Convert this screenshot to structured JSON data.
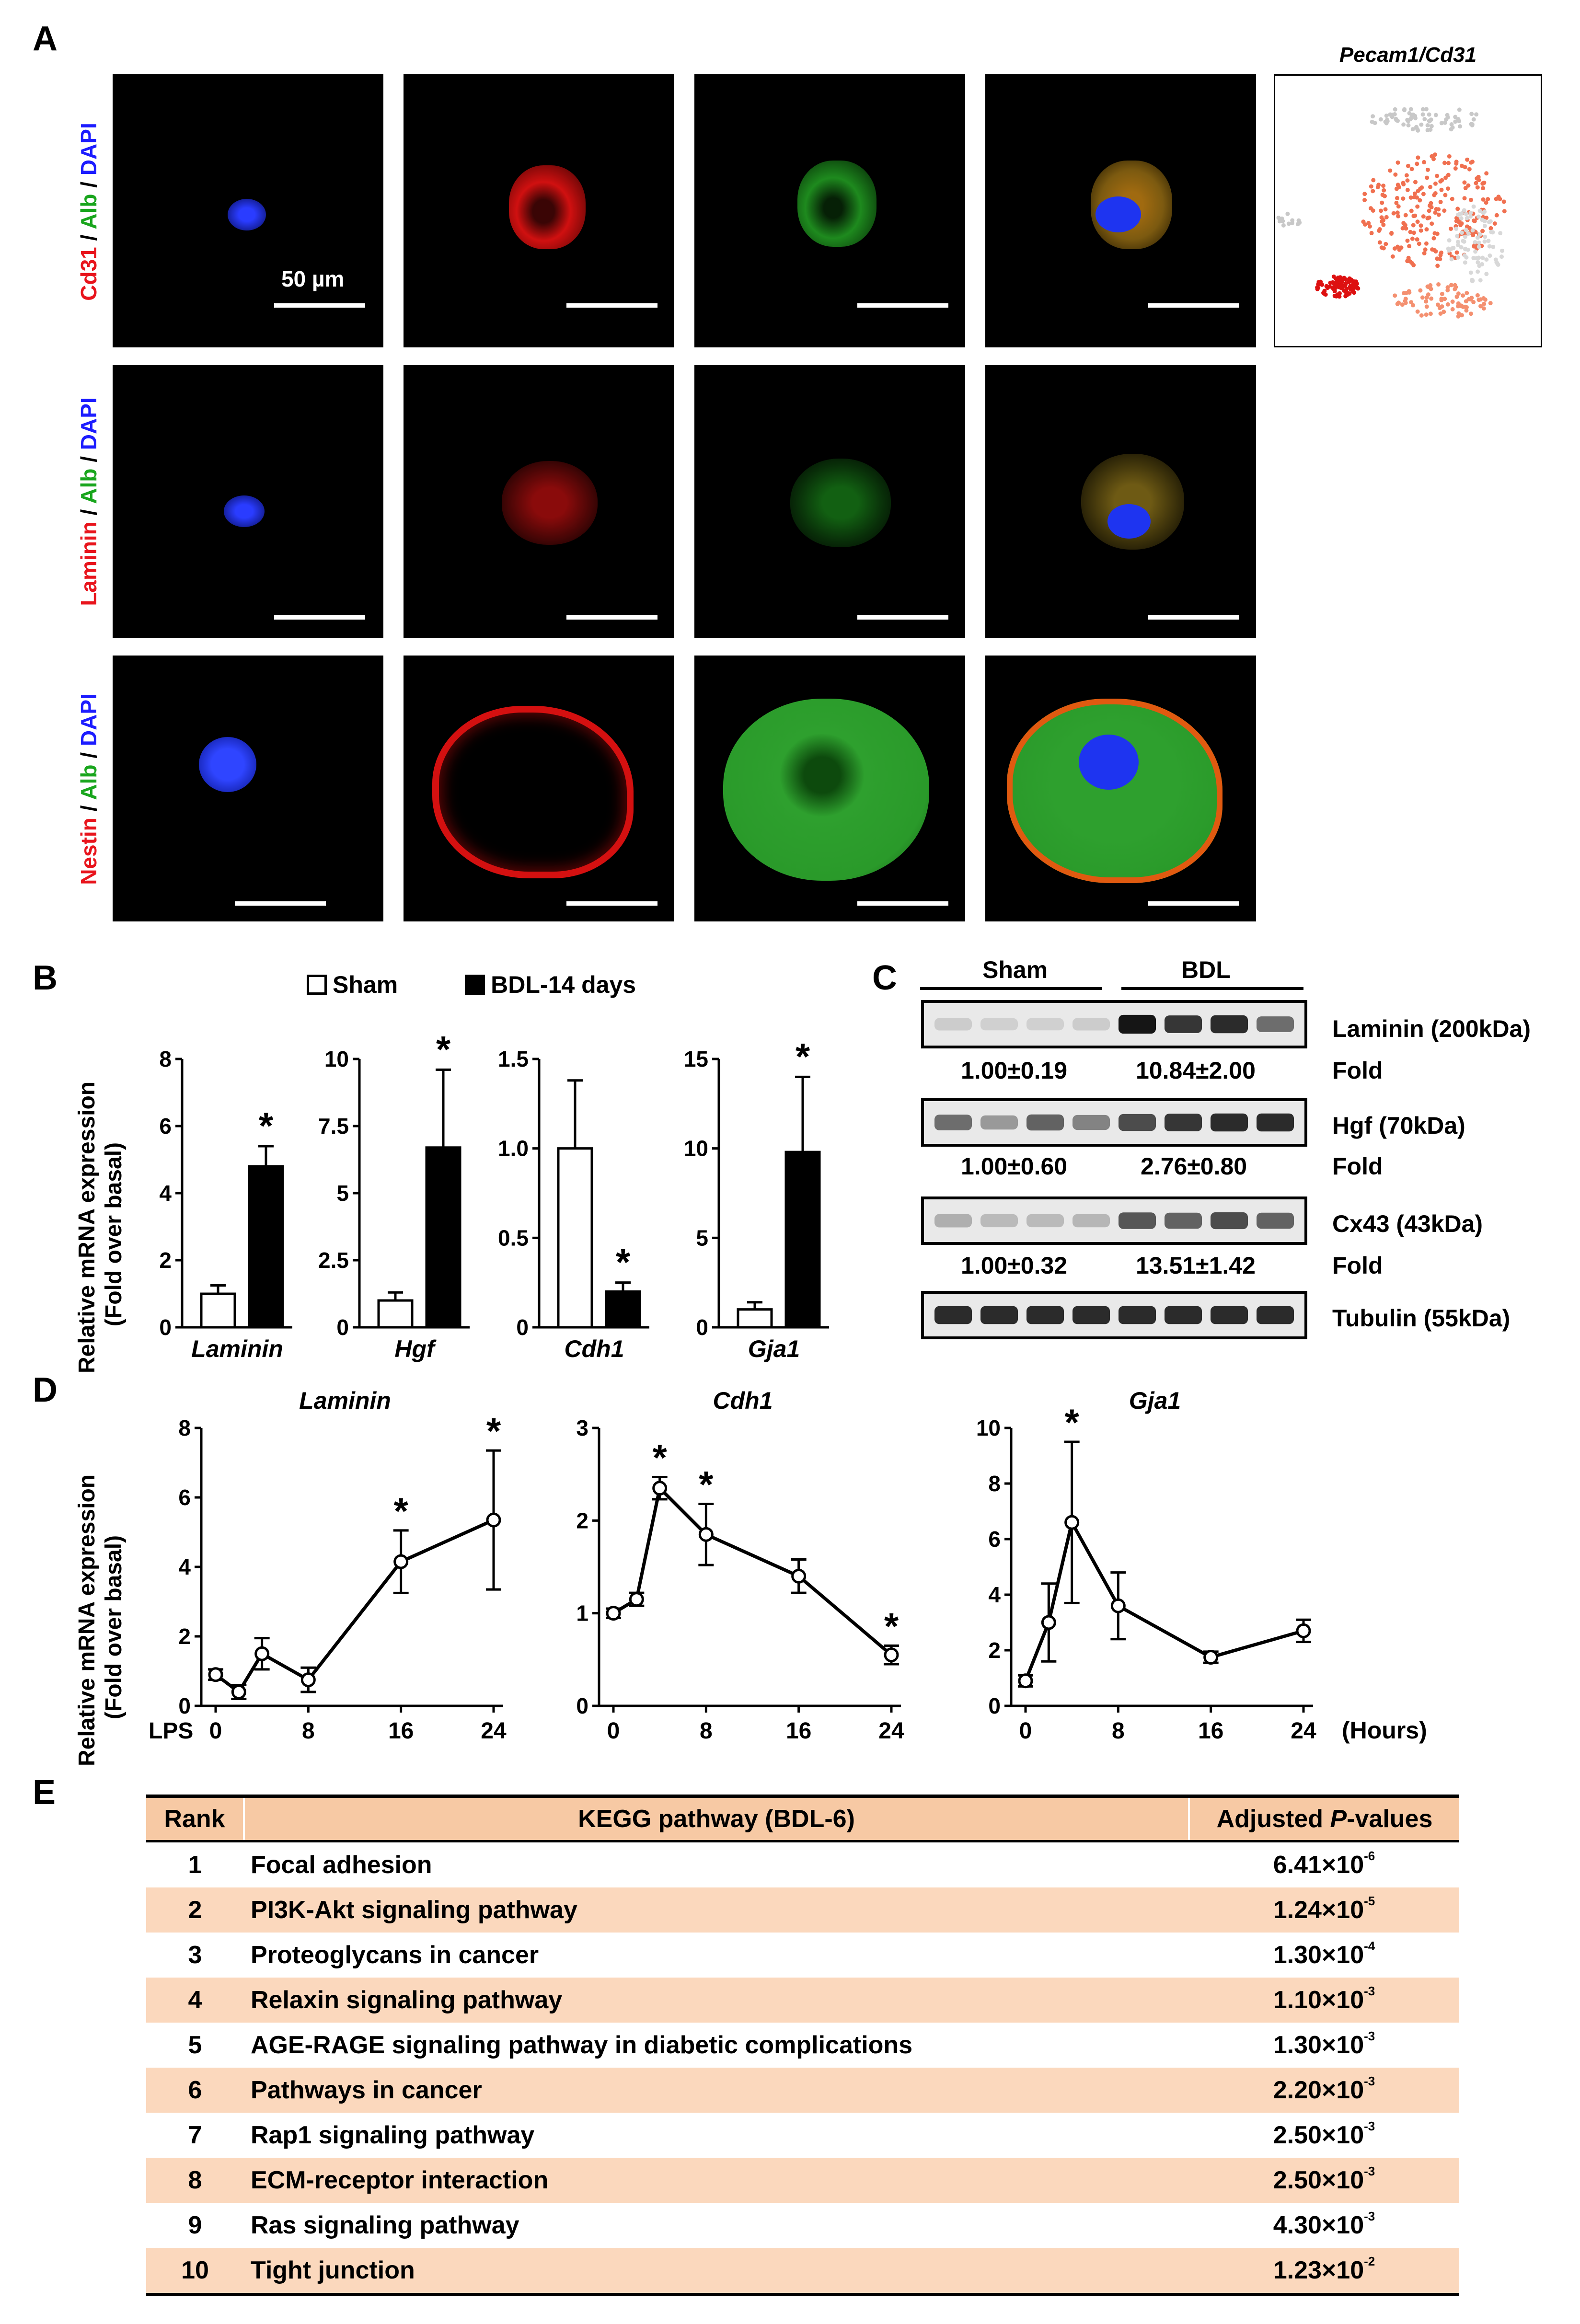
{
  "panel_labels": {
    "a": "A",
    "b": "B",
    "c": "C",
    "d": "D",
    "e": "E"
  },
  "panel_a": {
    "row_labels": [
      {
        "marker": "Cd31",
        "mid": " / ",
        "alb": "Alb",
        "sep": " / ",
        "dapi": "DAPI"
      },
      {
        "marker": "Laminin",
        "mid": " / ",
        "alb": "Alb",
        "sep": " / ",
        "dapi": "DAPI"
      },
      {
        "marker": "Nestin",
        "mid": " / ",
        "alb": "Alb",
        "sep": " / ",
        "dapi": "DAPI"
      }
    ],
    "scale_bar_label": "50 µm",
    "tsne_title": "Pecam1/Cd31",
    "colors": {
      "dapi": "#1a2cff",
      "red": "#e01414",
      "green": "#24b324",
      "text_red": "#e8141c",
      "text_green": "#18a51c",
      "text_blue": "#1c1cff"
    }
  },
  "panel_b": {
    "legend": {
      "sham": "Sham",
      "bdl": "BDL-14 days"
    },
    "ylabel_line1": "Relative mRNA expression",
    "ylabel_line2": "(Fold over basal)",
    "chart_data": [
      {
        "type": "bar",
        "gene": "Laminin",
        "categories": [
          "Sham",
          "BDL-14 days"
        ],
        "values": [
          1.0,
          4.8
        ],
        "errors": [
          0.25,
          0.6
        ],
        "ylim": [
          0,
          8
        ],
        "yticks": [
          "0",
          "2",
          "4",
          "6",
          "8"
        ],
        "significant": [
          false,
          true
        ]
      },
      {
        "type": "bar",
        "gene": "Hgf",
        "categories": [
          "Sham",
          "BDL-14 days"
        ],
        "values": [
          1.0,
          6.7
        ],
        "errors": [
          0.3,
          2.9
        ],
        "ylim": [
          0,
          10
        ],
        "yticks": [
          "0",
          "2.5",
          "5",
          "7.5",
          "10"
        ],
        "significant": [
          false,
          true
        ]
      },
      {
        "type": "bar",
        "gene": "Cdh1",
        "categories": [
          "Sham",
          "BDL-14 days"
        ],
        "values": [
          1.0,
          0.2
        ],
        "errors": [
          0.38,
          0.05
        ],
        "ylim": [
          0,
          1.5
        ],
        "yticks": [
          "0",
          "0.5",
          "1.0",
          "1.5"
        ],
        "significant": [
          false,
          true
        ]
      },
      {
        "type": "bar",
        "gene": "Gja1",
        "categories": [
          "Sham",
          "BDL-14 days"
        ],
        "values": [
          1.0,
          9.8
        ],
        "errors": [
          0.4,
          4.2
        ],
        "ylim": [
          0,
          15
        ],
        "yticks": [
          "0",
          "5",
          "10",
          "15"
        ],
        "significant": [
          false,
          true
        ]
      }
    ]
  },
  "panel_c": {
    "group_sham": "Sham",
    "group_bdl": "BDL",
    "blots": [
      {
        "name": "Laminin (200kDa)",
        "fold_label": "Fold",
        "sham_fold": "1.00±0.19",
        "bdl_fold": "10.84±2.00",
        "sham_intensity": [
          0.12,
          0.1,
          0.1,
          0.12
        ],
        "bdl_intensity": [
          0.95,
          0.8,
          0.85,
          0.55
        ]
      },
      {
        "name": "Hgf (70kDa)",
        "fold_label": "Fold",
        "sham_fold": "1.00±0.60",
        "bdl_fold": "2.76±0.80",
        "sham_intensity": [
          0.55,
          0.35,
          0.6,
          0.45
        ],
        "bdl_intensity": [
          0.7,
          0.8,
          0.85,
          0.85
        ]
      },
      {
        "name": "Cx43 (43kDa)",
        "fold_label": "Fold",
        "sham_fold": "1.00±0.32",
        "bdl_fold": "13.51±1.42",
        "sham_intensity": [
          0.25,
          0.2,
          0.2,
          0.22
        ],
        "bdl_intensity": [
          0.65,
          0.6,
          0.7,
          0.6
        ]
      },
      {
        "name": "Tubulin (55kDa)",
        "fold_label": "",
        "sham_fold": "",
        "bdl_fold": "",
        "sham_intensity": [
          0.85,
          0.85,
          0.85,
          0.85
        ],
        "bdl_intensity": [
          0.85,
          0.85,
          0.85,
          0.85
        ]
      }
    ]
  },
  "panel_d": {
    "ylabel_line1": "Relative mRNA expression",
    "ylabel_line2": "(Fold over basal)",
    "lps_label": "LPS",
    "hours_label": "(Hours)",
    "chart_data": [
      {
        "type": "line",
        "gene": "Laminin",
        "x": [
          0,
          2,
          4,
          8,
          16,
          24
        ],
        "y": [
          0.9,
          0.4,
          1.5,
          0.75,
          4.15,
          5.35
        ],
        "errors": [
          0.15,
          0.2,
          0.45,
          0.35,
          0.9,
          2.0
        ],
        "significant": [
          false,
          false,
          false,
          false,
          true,
          true
        ],
        "ylim": [
          0,
          8
        ],
        "yticks": [
          "0",
          "2",
          "4",
          "6",
          "8"
        ],
        "xticks": [
          "0",
          "8",
          "16",
          "24"
        ]
      },
      {
        "type": "line",
        "gene": "Cdh1",
        "x": [
          0,
          2,
          4,
          8,
          16,
          24
        ],
        "y": [
          1.0,
          1.15,
          2.35,
          1.85,
          1.4,
          0.55
        ],
        "errors": [
          0.05,
          0.07,
          0.12,
          0.33,
          0.18,
          0.1
        ],
        "significant": [
          false,
          false,
          true,
          true,
          false,
          true
        ],
        "ylim": [
          0,
          3
        ],
        "yticks": [
          "0",
          "1",
          "2",
          "3"
        ],
        "xticks": [
          "0",
          "8",
          "16",
          "24"
        ]
      },
      {
        "type": "line",
        "gene": "Gja1",
        "x": [
          0,
          2,
          4,
          8,
          16,
          24
        ],
        "y": [
          0.9,
          3.0,
          6.6,
          3.6,
          1.75,
          2.7
        ],
        "errors": [
          0.2,
          1.4,
          2.9,
          1.2,
          0.2,
          0.4
        ],
        "significant": [
          false,
          false,
          true,
          false,
          false,
          false
        ],
        "ylim": [
          0,
          10
        ],
        "yticks": [
          "0",
          "2",
          "4",
          "6",
          "8",
          "10"
        ],
        "xticks": [
          "0",
          "8",
          "16",
          "24"
        ]
      }
    ]
  },
  "panel_e": {
    "headers": {
      "rank": "Rank",
      "pathway": "KEGG pathway (BDL-6)",
      "pvalue_pre": "Adjusted ",
      "pvalue_p": "P",
      "pvalue_post": "-values"
    },
    "rows": [
      {
        "rank": "1",
        "pathway": "Focal adhesion",
        "mantissa": "6.41×10",
        "exp": "-6"
      },
      {
        "rank": "2",
        "pathway": "PI3K-Akt signaling pathway",
        "mantissa": "1.24×10",
        "exp": "-5"
      },
      {
        "rank": "3",
        "pathway": "Proteoglycans in cancer",
        "mantissa": "1.30×10",
        "exp": "-4"
      },
      {
        "rank": "4",
        "pathway": "Relaxin signaling pathway",
        "mantissa": "1.10×10",
        "exp": "-3"
      },
      {
        "rank": "5",
        "pathway": "AGE-RAGE signaling pathway in diabetic complications",
        "mantissa": "1.30×10",
        "exp": "-3"
      },
      {
        "rank": "6",
        "pathway": "Pathways in cancer",
        "mantissa": "2.20×10",
        "exp": "-3"
      },
      {
        "rank": "7",
        "pathway": "Rap1 signaling pathway",
        "mantissa": "2.50×10",
        "exp": "-3"
      },
      {
        "rank": "8",
        "pathway": "ECM-receptor interaction",
        "mantissa": "2.50×10",
        "exp": "-3"
      },
      {
        "rank": "9",
        "pathway": "Ras signaling pathway",
        "mantissa": "4.30×10",
        "exp": "-3"
      },
      {
        "rank": "10",
        "pathway": "Tight junction",
        "mantissa": "1.23×10",
        "exp": "-2"
      }
    ]
  }
}
